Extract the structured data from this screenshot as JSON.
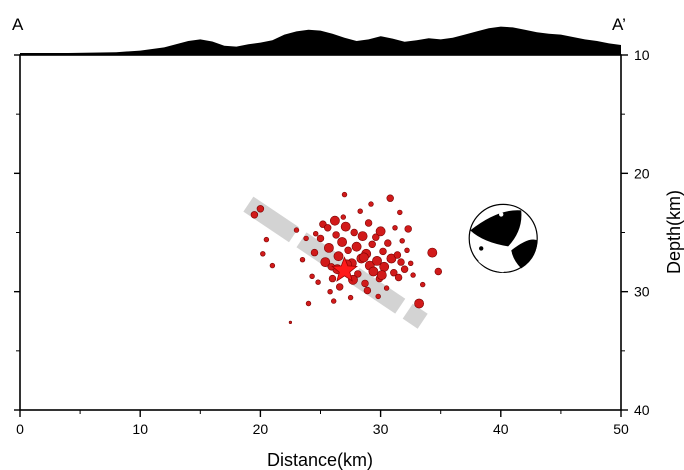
{
  "chart_data": {
    "type": "scatter",
    "profile_start_label": "A",
    "profile_end_label": "A’",
    "xlabel": "Distance(km)",
    "ylabel": "Depth(km)",
    "xlim": [
      0,
      50
    ],
    "ylim": [
      10,
      40
    ],
    "y_inverted": true,
    "xticks": [
      "0",
      "10",
      "20",
      "30",
      "40",
      "50"
    ],
    "yticks": [
      "10",
      "20",
      "30",
      "40"
    ],
    "grid": false,
    "colors": {
      "event_fill": "#d11a1a",
      "event_stroke": "#7a0000",
      "mainshock": "#ff1a1a",
      "fault_band": "#d3d3d3",
      "topography": "#000000"
    },
    "fault_band": {
      "start": [
        19,
        22.6
      ],
      "end": [
        33.5,
        32.5
      ]
    },
    "mainshock": {
      "x": 27,
      "y": 28.2
    },
    "focal_mechanism": {
      "x": 40.2,
      "y": 25.5,
      "type": "beachball"
    },
    "topography_profile": {
      "x": [
        0,
        4,
        8,
        10,
        12,
        14,
        15,
        16,
        17,
        18,
        19,
        20,
        21,
        22,
        23,
        24,
        25,
        26,
        27,
        28,
        29,
        30,
        31,
        32,
        33,
        34,
        35,
        36,
        37,
        38,
        39,
        40,
        41,
        42,
        43,
        44,
        45,
        46,
        47,
        48,
        49,
        50
      ],
      "elevation": [
        0.0,
        0.0,
        0.05,
        0.15,
        0.35,
        0.75,
        0.85,
        0.72,
        0.45,
        0.4,
        0.55,
        0.65,
        0.8,
        1.15,
        1.35,
        1.45,
        1.4,
        1.2,
        0.95,
        0.75,
        0.85,
        1.05,
        0.9,
        0.7,
        0.8,
        0.92,
        0.85,
        0.95,
        1.15,
        1.35,
        1.55,
        1.65,
        1.6,
        1.45,
        1.3,
        1.2,
        1.15,
        1.0,
        0.85,
        0.75,
        0.6,
        0.5
      ]
    },
    "events": [
      {
        "x": 19.5,
        "y": 23.5,
        "m": 2
      },
      {
        "x": 20.0,
        "y": 23.0,
        "m": 2
      },
      {
        "x": 20.2,
        "y": 26.8,
        "m": 1
      },
      {
        "x": 20.5,
        "y": 25.6,
        "m": 1
      },
      {
        "x": 21.0,
        "y": 27.8,
        "m": 1
      },
      {
        "x": 22.5,
        "y": 32.6,
        "m": 0
      },
      {
        "x": 23.0,
        "y": 24.8,
        "m": 1
      },
      {
        "x": 23.8,
        "y": 25.5,
        "m": 1
      },
      {
        "x": 24.0,
        "y": 31.0,
        "m": 1
      },
      {
        "x": 24.3,
        "y": 28.7,
        "m": 1
      },
      {
        "x": 24.5,
        "y": 26.7,
        "m": 2
      },
      {
        "x": 24.8,
        "y": 29.2,
        "m": 1
      },
      {
        "x": 25.0,
        "y": 25.5,
        "m": 2
      },
      {
        "x": 25.2,
        "y": 24.3,
        "m": 2
      },
      {
        "x": 25.4,
        "y": 27.5,
        "m": 3
      },
      {
        "x": 25.6,
        "y": 24.6,
        "m": 2
      },
      {
        "x": 25.7,
        "y": 26.3,
        "m": 3
      },
      {
        "x": 25.8,
        "y": 30.0,
        "m": 1
      },
      {
        "x": 26.0,
        "y": 28.9,
        "m": 2
      },
      {
        "x": 26.2,
        "y": 24.0,
        "m": 3
      },
      {
        "x": 26.3,
        "y": 25.2,
        "m": 2
      },
      {
        "x": 26.5,
        "y": 27.0,
        "m": 3
      },
      {
        "x": 26.6,
        "y": 29.6,
        "m": 2
      },
      {
        "x": 26.8,
        "y": 25.8,
        "m": 3
      },
      {
        "x": 26.9,
        "y": 23.7,
        "m": 1
      },
      {
        "x": 27.0,
        "y": 21.8,
        "m": 1
      },
      {
        "x": 27.1,
        "y": 24.5,
        "m": 3
      },
      {
        "x": 27.3,
        "y": 26.5,
        "m": 2
      },
      {
        "x": 27.5,
        "y": 30.5,
        "m": 1
      },
      {
        "x": 27.6,
        "y": 27.6,
        "m": 3
      },
      {
        "x": 27.8,
        "y": 25.0,
        "m": 2
      },
      {
        "x": 28.0,
        "y": 26.2,
        "m": 3
      },
      {
        "x": 28.1,
        "y": 28.5,
        "m": 2
      },
      {
        "x": 28.3,
        "y": 23.2,
        "m": 1
      },
      {
        "x": 28.4,
        "y": 27.2,
        "m": 3
      },
      {
        "x": 28.5,
        "y": 25.3,
        "m": 3
      },
      {
        "x": 28.7,
        "y": 29.3,
        "m": 2
      },
      {
        "x": 28.8,
        "y": 26.8,
        "m": 3
      },
      {
        "x": 29.0,
        "y": 24.2,
        "m": 2
      },
      {
        "x": 29.1,
        "y": 27.8,
        "m": 3
      },
      {
        "x": 29.3,
        "y": 26.0,
        "m": 2
      },
      {
        "x": 29.4,
        "y": 28.3,
        "m": 3
      },
      {
        "x": 29.6,
        "y": 25.4,
        "m": 2
      },
      {
        "x": 29.7,
        "y": 27.4,
        "m": 3
      },
      {
        "x": 29.9,
        "y": 28.9,
        "m": 2
      },
      {
        "x": 30.0,
        "y": 24.9,
        "m": 3
      },
      {
        "x": 30.2,
        "y": 26.6,
        "m": 2
      },
      {
        "x": 30.3,
        "y": 27.9,
        "m": 3
      },
      {
        "x": 30.5,
        "y": 29.7,
        "m": 1
      },
      {
        "x": 30.6,
        "y": 25.9,
        "m": 2
      },
      {
        "x": 30.8,
        "y": 22.1,
        "m": 2
      },
      {
        "x": 30.9,
        "y": 27.2,
        "m": 3
      },
      {
        "x": 31.1,
        "y": 28.4,
        "m": 2
      },
      {
        "x": 31.2,
        "y": 24.6,
        "m": 1
      },
      {
        "x": 31.4,
        "y": 26.9,
        "m": 2
      },
      {
        "x": 31.5,
        "y": 28.8,
        "m": 2
      },
      {
        "x": 31.7,
        "y": 27.5,
        "m": 2
      },
      {
        "x": 31.8,
        "y": 25.7,
        "m": 1
      },
      {
        "x": 32.0,
        "y": 28.1,
        "m": 2
      },
      {
        "x": 32.2,
        "y": 26.5,
        "m": 1
      },
      {
        "x": 32.3,
        "y": 24.7,
        "m": 2
      },
      {
        "x": 32.5,
        "y": 27.6,
        "m": 1
      },
      {
        "x": 32.7,
        "y": 28.6,
        "m": 1
      },
      {
        "x": 33.2,
        "y": 31.0,
        "m": 3
      },
      {
        "x": 34.3,
        "y": 26.7,
        "m": 3
      },
      {
        "x": 34.8,
        "y": 28.3,
        "m": 2
      },
      {
        "x": 26.4,
        "y": 28.1,
        "m": 3
      },
      {
        "x": 27.7,
        "y": 29.0,
        "m": 3
      },
      {
        "x": 28.9,
        "y": 29.9,
        "m": 2
      },
      {
        "x": 25.9,
        "y": 27.9,
        "m": 2
      },
      {
        "x": 29.8,
        "y": 30.4,
        "m": 1
      },
      {
        "x": 27.2,
        "y": 27.7,
        "m": 3
      },
      {
        "x": 28.6,
        "y": 27.1,
        "m": 3
      },
      {
        "x": 30.1,
        "y": 28.6,
        "m": 3
      },
      {
        "x": 26.1,
        "y": 30.8,
        "m": 1
      },
      {
        "x": 24.6,
        "y": 25.1,
        "m": 1
      },
      {
        "x": 23.5,
        "y": 27.3,
        "m": 1
      },
      {
        "x": 31.6,
        "y": 23.3,
        "m": 1
      },
      {
        "x": 33.5,
        "y": 29.4,
        "m": 1
      },
      {
        "x": 29.2,
        "y": 22.6,
        "m": 1
      }
    ]
  }
}
